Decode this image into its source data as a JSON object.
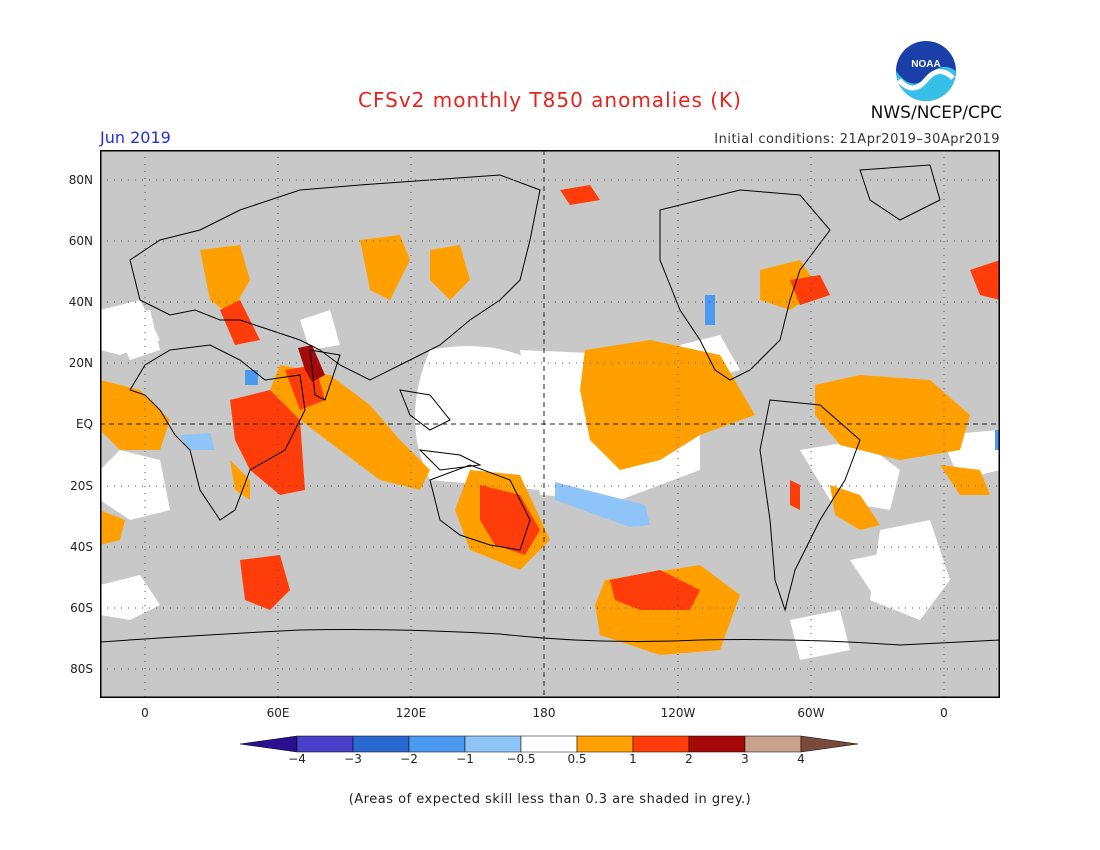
{
  "title": "CFSv2 monthly T850 anomalies (K)",
  "month": "Jun 2019",
  "initial_conditions": "Initial conditions: 21Apr2019–30Apr2019",
  "org": "NWS/NCEP/CPC",
  "logo_text": "NOAA",
  "lat_labels": [
    "80N",
    "60N",
    "40N",
    "20N",
    "EQ",
    "20S",
    "40S",
    "60S",
    "80S"
  ],
  "lon_labels": [
    "0",
    "60E",
    "120E",
    "180",
    "120W",
    "60W",
    "0"
  ],
  "colorbar": {
    "labels": [
      "−4",
      "−3",
      "−2",
      "−1",
      "−0.5",
      "0.5",
      "1",
      "2",
      "3",
      "4"
    ],
    "colors": [
      "#2a0f8f",
      "#4a3fc8",
      "#2a6ad0",
      "#4c9af0",
      "#8ec4f8",
      "#ffffff",
      "#ffa000",
      "#ff3d0a",
      "#a50a0a",
      "#c8a08c",
      "#7a4a3c"
    ]
  },
  "colors": {
    "land_mask": "#c8c8c8",
    "ocean_unshaded": "#ffffff",
    "warm_0_5_1": "#ffa000",
    "warm_1_2": "#ff3d0a",
    "warm_2_3": "#a50a0a",
    "cool_0_5_1": "#8ec4f8",
    "cool_1_2": "#4c9af0"
  },
  "footnote": "(Areas of expected skill less than 0.3 are shaded in grey.)"
}
